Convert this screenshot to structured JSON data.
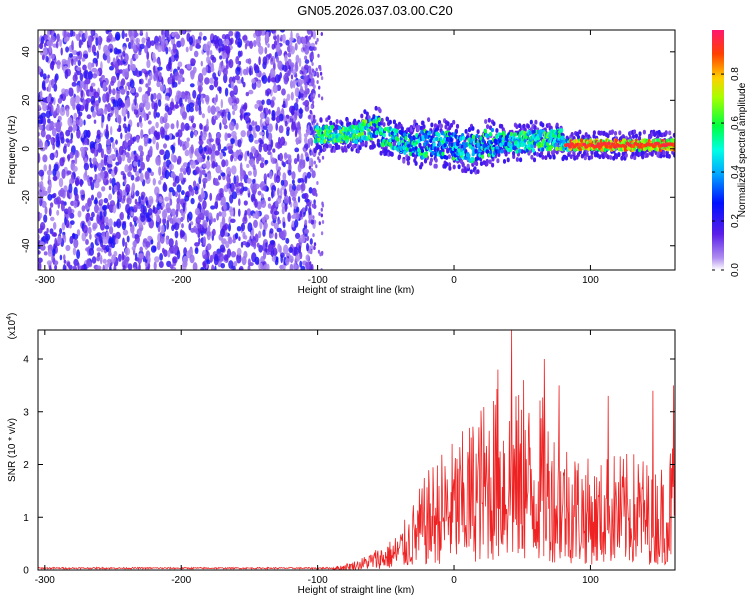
{
  "figure": {
    "title": "GN05.2026.037.03.00.C20"
  },
  "chart_data": [
    {
      "type": "heatmap",
      "name": "spectrogram",
      "title": "GN05.2026.037.03.00.C20",
      "xlabel": "Height of straight line (km)",
      "ylabel": "Frequency (Hz)",
      "xlim": [
        -305,
        162
      ],
      "ylim": [
        -50,
        49
      ],
      "xticks": [
        -300,
        -200,
        -100,
        0,
        100
      ],
      "yticks": [
        -40,
        -20,
        0,
        20,
        40
      ],
      "colorbar": {
        "label": "Normalized spectral amplitude",
        "range": [
          0,
          0.98
        ],
        "ticks": [
          0.0,
          0.2,
          0.4,
          0.6,
          0.8
        ]
      },
      "description_regions": [
        {
          "x_range": [
            -305,
            -102
          ],
          "pattern": "broadband noise across all frequencies",
          "amplitude": [
            0.05,
            0.25
          ]
        },
        {
          "x_range": [
            -102,
            162
          ],
          "pattern": "narrow band centred near 0-5 Hz",
          "amplitude": [
            0.1,
            0.98
          ]
        }
      ]
    },
    {
      "type": "line",
      "name": "snr",
      "xlabel": "Height of straight line (km)",
      "ylabel": "SNR (10 * v/v)",
      "y_multiplier": "(x10",
      "y_multiplier_exp": "4",
      "y_multiplier_close": ")",
      "xlim": [
        -305,
        162
      ],
      "ylim": [
        0,
        4.55
      ],
      "xticks": [
        -300,
        -200,
        -100,
        0,
        100
      ],
      "yticks": [
        0,
        1,
        2,
        3,
        4
      ],
      "color": "#ee2222",
      "envelope": [
        [
          -305,
          0.04
        ],
        [
          -120,
          0.05
        ],
        [
          -85,
          0.08
        ],
        [
          -70,
          0.2
        ],
        [
          -55,
          0.45
        ],
        [
          -45,
          0.6
        ],
        [
          -35,
          1.0
        ],
        [
          -25,
          1.6
        ],
        [
          -15,
          2.1
        ],
        [
          -5,
          2.4
        ],
        [
          5,
          2.6
        ],
        [
          15,
          3.0
        ],
        [
          25,
          3.4
        ],
        [
          35,
          3.6
        ],
        [
          45,
          3.4
        ],
        [
          55,
          3.3
        ],
        [
          65,
          3.3
        ],
        [
          75,
          2.7
        ],
        [
          85,
          2.5
        ],
        [
          95,
          2.2
        ],
        [
          105,
          2.0
        ],
        [
          115,
          2.3
        ],
        [
          125,
          2.2
        ],
        [
          135,
          2.3
        ],
        [
          145,
          2.0
        ],
        [
          155,
          2.1
        ],
        [
          162,
          2.8
        ]
      ],
      "peaks": [
        [
          32,
          3.8
        ],
        [
          42,
          4.55
        ],
        [
          51,
          3.6
        ],
        [
          66,
          4.0
        ],
        [
          77,
          3.5
        ],
        [
          113,
          3.3
        ],
        [
          146,
          3.4
        ],
        [
          161,
          3.5
        ]
      ]
    }
  ]
}
